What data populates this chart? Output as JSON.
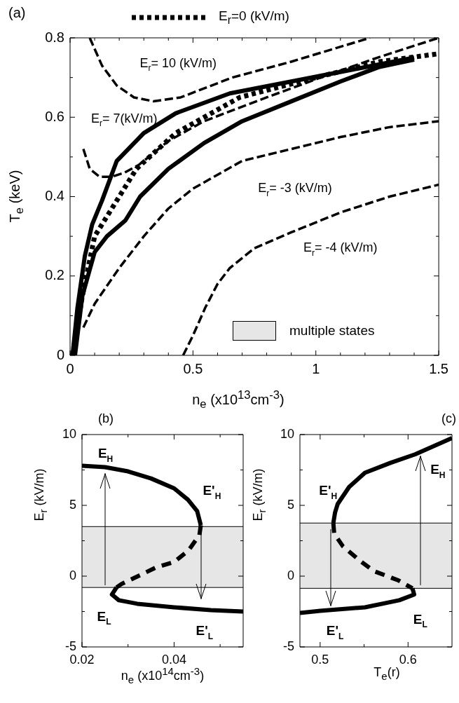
{
  "chart_data": [
    {
      "type": "line",
      "title": "(a)",
      "xlabel": "n$_{e}$ (x10$^{13}$cm$^{-3}$)",
      "ylabel": "T$_{e}$ (keV)",
      "xlim": [
        0,
        1.5
      ],
      "ylim": [
        0,
        0.8
      ],
      "xticks": [
        0,
        {
          "value": 0.1,
          "label": null
        },
        {
          "value": 0.2,
          "label": null
        },
        {
          "value": 0.3,
          "label": null
        },
        {
          "value": 0.4,
          "label": null
        },
        0.5,
        {
          "value": 0.6,
          "label": null
        },
        {
          "value": 0.7,
          "label": null
        },
        {
          "value": 0.8,
          "label": null
        },
        {
          "value": 0.9,
          "label": null
        },
        1,
        {
          "value": 1.1,
          "label": null
        },
        {
          "value": 1.2,
          "label": null
        },
        {
          "value": 1.3,
          "label": null
        },
        {
          "value": 1.4,
          "label": null
        },
        1.5
      ],
      "yticks": [
        0,
        {
          "value": 0.1,
          "label": null
        },
        0.2,
        {
          "value": 0.3,
          "label": null
        },
        0.4,
        {
          "value": 0.5,
          "label": null
        },
        0.6,
        {
          "value": 0.7,
          "label": null
        },
        0.8
      ],
      "grid": false,
      "legend": "top",
      "series": [
        {
          "color": "#000000",
          "line_style": "solid",
          "x": [
            0.01,
            0.03,
            0.06,
            0.09,
            0.13,
            0.19,
            0.3,
            0.43,
            0.65,
            0.9,
            1.15,
            1.4
          ],
          "values": [
            0,
            0.12,
            0.25,
            0.33,
            0.39,
            0.49,
            0.56,
            0.61,
            0.66,
            0.69,
            0.72,
            0.75
          ]
        },
        {
          "color": "#000000",
          "line_style": "solid",
          "x": [
            0.02,
            0.05,
            0.1,
            0.15,
            0.225,
            0.285,
            0.4,
            0.545,
            0.7,
            0.9,
            1.1,
            1.255,
            1.4
          ],
          "values": [
            0,
            0.15,
            0.26,
            0.3,
            0.34,
            0.4,
            0.47,
            0.535,
            0.59,
            0.64,
            0.69,
            0.726,
            0.745
          ]
        },
        {
          "name": "E$_{r}$=0 (kV/m)",
          "color": "#000000",
          "line_style": "dotted",
          "x": [
            0.01,
            0.05,
            0.1,
            0.19,
            0.27,
            0.43,
            0.69,
            1.0,
            1.26,
            1.5
          ],
          "values": [
            0,
            0.15,
            0.3,
            0.39,
            0.47,
            0.56,
            0.65,
            0.7,
            0.74,
            0.76
          ]
        },
        {
          "color": "#000000",
          "line_style": "dashed",
          "x": [
            0.08,
            0.13,
            0.19,
            0.26,
            0.34,
            0.45,
            0.66,
            0.9,
            1.22
          ],
          "values": [
            0.8,
            0.73,
            0.68,
            0.65,
            0.64,
            0.65,
            0.7,
            0.74,
            0.8
          ]
        },
        {
          "color": "#000000",
          "line_style": "dashed",
          "x": [
            0.054,
            0.08,
            0.12,
            0.17,
            0.22,
            0.28,
            0.4,
            0.545,
            0.8,
            1.02,
            1.25,
            1.5
          ],
          "values": [
            0.52,
            0.47,
            0.45,
            0.45,
            0.46,
            0.48,
            0.54,
            0.59,
            0.65,
            0.7,
            0.75,
            0.8
          ]
        },
        {
          "color": "#000000",
          "line_style": "dashed",
          "x": [
            0.054,
            0.1,
            0.2,
            0.3,
            0.4,
            0.5,
            0.7,
            0.9,
            1.1,
            1.3,
            1.5
          ],
          "values": [
            0.07,
            0.13,
            0.22,
            0.3,
            0.37,
            0.42,
            0.49,
            0.52,
            0.55,
            0.575,
            0.59
          ]
        },
        {
          "color": "#000000",
          "line_style": "dashed",
          "x": [
            0.46,
            0.5,
            0.55,
            0.6,
            0.65,
            0.75,
            0.9,
            1.1,
            1.3,
            1.5
          ],
          "values": [
            0,
            0.05,
            0.12,
            0.18,
            0.22,
            0.27,
            0.31,
            0.36,
            0.4,
            0.43
          ]
        }
      ],
      "annotations": [
        "E$_{r}$= 10 (kV/m)",
        "E$_{r}$= 7(kV/m)",
        "E$_{r}$= -3 (kV/m)",
        "E$_{r}$= -4 (kV/m)",
        "multiple states"
      ]
    },
    {
      "type": "line",
      "title": "(b)",
      "xlabel": "n$_{e}$ (x10$^{14}$cm$^{-3}$)",
      "ylabel": "E$_{r}$ (kV/m)",
      "xlim": [
        0.02,
        0.055
      ],
      "ylim": [
        -5,
        10
      ],
      "xticks": [
        0.02,
        {
          "value": 0.03,
          "label": null
        },
        0.04,
        {
          "value": 0.05,
          "label": null
        }
      ],
      "yticks": [
        -5,
        {
          "value": -2.5,
          "label": null
        },
        0,
        {
          "value": 2.5,
          "label": null
        },
        5,
        {
          "value": 7.5,
          "label": null
        },
        10
      ],
      "grid": false,
      "bands": [
        {
          "axis": "y",
          "from": -0.8,
          "to": 3.5,
          "color": "#e6e6e6"
        }
      ],
      "ref_lines": [
        {
          "axis": "y",
          "value": 3.5,
          "color": "#000000"
        },
        {
          "axis": "y",
          "value": -0.8,
          "color": "#000000"
        }
      ],
      "series": [
        {
          "color": "#000000",
          "line_style": "solid",
          "x": [
            0.02,
            0.025,
            0.03,
            0.035,
            0.04,
            0.043,
            0.045,
            0.0458
          ],
          "values": [
            7.8,
            7.7,
            7.4,
            6.9,
            6.2,
            5.4,
            4.6,
            3.6
          ]
        },
        {
          "color": "#000000",
          "line_style": "dashed",
          "x": [
            0.0458,
            0.0455,
            0.0431,
            0.04,
            0.036,
            0.0328,
            0.0286,
            0.0275
          ],
          "values": [
            3.6,
            2.9,
            1.8,
            1.0,
            0.6,
            0.1,
            -0.55,
            -0.8
          ]
        },
        {
          "color": "#000000",
          "line_style": "solid",
          "x": [
            0.0275,
            0.0265,
            0.028,
            0.032,
            0.04,
            0.048,
            0.055
          ],
          "values": [
            -0.8,
            -1.3,
            -1.7,
            -1.95,
            -2.2,
            -2.4,
            -2.5
          ]
        }
      ],
      "annotations": [
        "E$_{H}$",
        "E'$_{H}$",
        "E$_{L}$",
        "E'$_{L}$"
      ]
    },
    {
      "type": "line",
      "title": "(c)",
      "xlabel": "T$_{e}$(r)",
      "ylabel": "E$_{r}$ (kV/m)",
      "xlim": [
        0.477,
        0.65
      ],
      "ylim": [
        -5,
        10
      ],
      "xticks": [
        0.5,
        {
          "value": 0.55,
          "label": null
        },
        0.6
      ],
      "yticks": [
        -5,
        {
          "value": -2.5,
          "label": null
        },
        0,
        {
          "value": 2.5,
          "label": null
        },
        5,
        {
          "value": 7.5,
          "label": null
        },
        10
      ],
      "grid": false,
      "bands": [
        {
          "axis": "y",
          "from": -0.86,
          "to": 3.75,
          "color": "#e6e6e6"
        }
      ],
      "ref_lines": [
        {
          "axis": "y",
          "value": 3.75,
          "color": "#000000"
        },
        {
          "axis": "y",
          "value": -0.86,
          "color": "#000000"
        }
      ],
      "series": [
        {
          "color": "#000000",
          "line_style": "solid",
          "x": [
            0.515,
            0.517,
            0.52,
            0.533,
            0.551,
            0.58,
            0.608,
            0.65
          ],
          "values": [
            3.75,
            4.5,
            5.1,
            6.3,
            7.3,
            8.0,
            8.6,
            9.75
          ]
        },
        {
          "color": "#000000",
          "line_style": "dashed",
          "x": [
            0.515,
            0.516,
            0.526,
            0.545,
            0.561,
            0.589,
            0.605
          ],
          "values": [
            3.75,
            3.0,
            2.1,
            1.1,
            0.36,
            -0.3,
            -0.86
          ]
        },
        {
          "color": "#000000",
          "line_style": "solid",
          "x": [
            0.605,
            0.607,
            0.59,
            0.551,
            0.5,
            0.477
          ],
          "values": [
            -0.86,
            -1.3,
            -1.7,
            -2.2,
            -2.45,
            -2.6
          ]
        }
      ],
      "annotations": [
        "E'$_{H}$",
        "E$_{H}$",
        "E'$_{L}$",
        "E$_{L}$"
      ]
    }
  ]
}
